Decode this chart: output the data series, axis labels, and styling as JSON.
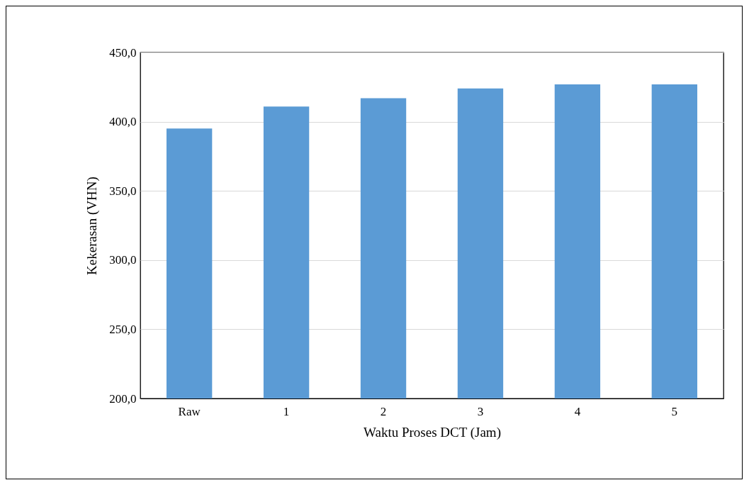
{
  "chart_data": {
    "type": "bar",
    "xlabel": "Waktu Proses DCT (Jam)",
    "ylabel": "Kekerasan  (VHN)",
    "categories": [
      "Raw",
      "1",
      "2",
      "3",
      "4",
      "5"
    ],
    "values": [
      395,
      411,
      417,
      424,
      427,
      427
    ],
    "color": "#5b9bd5",
    "ylim": [
      200,
      450
    ],
    "yticks": [
      {
        "value": 200,
        "label": "200,0"
      },
      {
        "value": 250,
        "label": "250,0"
      },
      {
        "value": 300,
        "label": "300,0"
      },
      {
        "value": 350,
        "label": "350,0"
      },
      {
        "value": 400,
        "label": "400,0"
      },
      {
        "value": 450,
        "label": "450,0"
      }
    ],
    "grid": "y"
  }
}
